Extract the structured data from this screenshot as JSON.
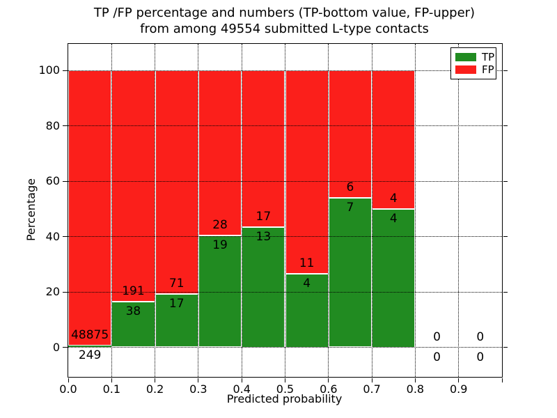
{
  "title": {
    "line1": "TP /FP percentage and numbers (TP-bottom value, FP-upper)",
    "line2": "from among 49554 submitted L-type contacts"
  },
  "axes": {
    "x_label": "Predicted probability",
    "y_label": "Percentage"
  },
  "legend": {
    "position": "upper right",
    "items": [
      {
        "label": "TP",
        "color": "#218b21"
      },
      {
        "label": "FP",
        "color": "#fb1f1b"
      }
    ]
  },
  "colors": {
    "tp_green": "#218b21",
    "fp_red": "#fb1f1b",
    "text": "#000000",
    "background": "#ffffff",
    "bar_edge": "#ffffff",
    "grid": "#000000"
  },
  "chart_data": {
    "type": "bar",
    "stacked": true,
    "normalized_to": "percent of bin total",
    "title": "TP /FP percentage and numbers (TP-bottom value, FP-upper) from among 49554 submitted L-type contacts",
    "xlabel": "Predicted probability",
    "ylabel": "Percentage",
    "xlim": [
      0.0,
      1.0
    ],
    "ylim": [
      -11,
      110
    ],
    "grid": "dotted both axes, drawn above bars",
    "legend_position": "upper right",
    "bin_edges": [
      0.0,
      0.1,
      0.2,
      0.3,
      0.4,
      0.5,
      0.6,
      0.7,
      0.8,
      0.9,
      1.0
    ],
    "bin_labels": [
      "0.0-0.1",
      "0.1-0.2",
      "0.2-0.3",
      "0.3-0.4",
      "0.4-0.5",
      "0.5-0.6",
      "0.6-0.7",
      "0.7-0.8",
      "0.8-0.9",
      "0.9-1.0"
    ],
    "series": [
      {
        "name": "TP",
        "role": "bottom",
        "counts": [
          249,
          38,
          17,
          19,
          13,
          4,
          7,
          4,
          0,
          0
        ]
      },
      {
        "name": "FP",
        "role": "upper",
        "counts": [
          48875,
          191,
          71,
          28,
          17,
          11,
          6,
          4,
          0,
          0
        ]
      }
    ],
    "tp_percent_per_bin": [
      0.51,
      16.59,
      19.32,
      40.43,
      43.33,
      26.67,
      53.85,
      50.0,
      null,
      null
    ],
    "total_submitted": 49554,
    "x_ticks": {
      "values": [
        0.0,
        0.1,
        0.2,
        0.3,
        0.4,
        0.5,
        0.6,
        0.7,
        0.8,
        0.9,
        1.0
      ],
      "labels": [
        "0.0",
        "0.1",
        "0.2",
        "0.3",
        "0.4",
        "0.5",
        "0.6",
        "0.7",
        "0.8",
        "0.9",
        ""
      ]
    },
    "y_ticks": {
      "values": [
        0,
        20,
        40,
        60,
        80,
        100
      ],
      "labels": [
        "0",
        "20",
        "40",
        "60",
        "80",
        "100"
      ]
    }
  }
}
